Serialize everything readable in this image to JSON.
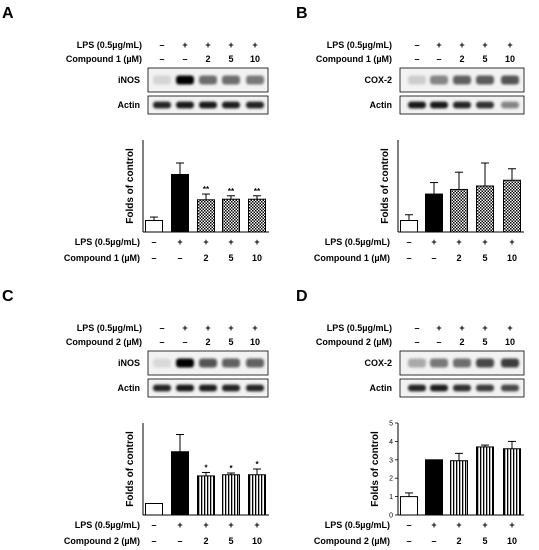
{
  "panels": [
    {
      "letter": "A",
      "treatments": [
        {
          "label": "LPS (0.5µg/mL)",
          "values": [
            "–",
            "+",
            "+",
            "+",
            "+"
          ]
        },
        {
          "label": "Compound 1 (µM)",
          "values": [
            "–",
            "–",
            "2",
            "5",
            "10"
          ]
        }
      ],
      "blots": [
        {
          "label": "iNOS",
          "intensity": [
            0.12,
            1.0,
            0.55,
            0.55,
            0.5
          ]
        },
        {
          "label": "Actin",
          "intensity": [
            0.85,
            0.9,
            0.9,
            0.88,
            0.86
          ]
        }
      ],
      "bottom_treatments": [
        {
          "label": "LPS (0.5µg/mL)",
          "values": [
            "–",
            "+",
            "+",
            "+",
            "+"
          ]
        },
        {
          "label": "Compound 1 (µM)",
          "values": [
            "–",
            "–",
            "2",
            "5",
            "10"
          ]
        }
      ]
    },
    {
      "letter": "B",
      "treatments": [
        {
          "label": "LPS (0.5µg/mL)",
          "values": [
            "–",
            "+",
            "+",
            "+",
            "+"
          ]
        },
        {
          "label": "Compound 1 (µM)",
          "values": [
            "–",
            "–",
            "2",
            "5",
            "10"
          ]
        }
      ],
      "blots": [
        {
          "label": "COX-2",
          "intensity": [
            0.15,
            0.45,
            0.6,
            0.62,
            0.65
          ]
        },
        {
          "label": "Actin",
          "intensity": [
            0.9,
            0.9,
            0.85,
            0.8,
            0.45
          ]
        }
      ],
      "bottom_treatments": [
        {
          "label": "LPS (0.5µg/mL)",
          "values": [
            "–",
            "+",
            "+",
            "+",
            "+"
          ]
        },
        {
          "label": "Compound 1 (µM)",
          "values": [
            "–",
            "–",
            "2",
            "5",
            "10"
          ]
        }
      ]
    },
    {
      "letter": "C",
      "treatments": [
        {
          "label": "LPS (0.5µg/mL)",
          "values": [
            "–",
            "+",
            "+",
            "+",
            "+"
          ]
        },
        {
          "label": "Compound 2 (µM)",
          "values": [
            "–",
            "–",
            "2",
            "5",
            "10"
          ]
        }
      ],
      "blots": [
        {
          "label": "iNOS",
          "intensity": [
            0.1,
            1.0,
            0.65,
            0.6,
            0.6
          ]
        },
        {
          "label": "Actin",
          "intensity": [
            0.85,
            0.9,
            0.88,
            0.86,
            0.85
          ]
        }
      ],
      "bottom_treatments": [
        {
          "label": "LPS (0.5µg/mL)",
          "values": [
            "–",
            "+",
            "+",
            "+",
            "+"
          ]
        },
        {
          "label": "Compound 2 (µM)",
          "values": [
            "–",
            "–",
            "2",
            "5",
            "10"
          ]
        }
      ]
    },
    {
      "letter": "D",
      "treatments": [
        {
          "label": "LPS (0.5µg/mL)",
          "values": [
            "–",
            "+",
            "+",
            "+",
            "+"
          ]
        },
        {
          "label": "Compound 2 (µM)",
          "values": [
            "–",
            "–",
            "2",
            "5",
            "10"
          ]
        }
      ],
      "blots": [
        {
          "label": "COX-2",
          "intensity": [
            0.3,
            0.5,
            0.55,
            0.7,
            0.75
          ]
        },
        {
          "label": "Actin",
          "intensity": [
            0.85,
            0.88,
            0.8,
            0.75,
            0.7
          ]
        }
      ],
      "bottom_treatments": [
        {
          "label": "LPS (0.5µg/mL)",
          "values": [
            "–",
            "+",
            "+",
            "+",
            "+"
          ]
        },
        {
          "label": "Compound 2 (µM)",
          "values": [
            "–",
            "–",
            "2",
            "5",
            "10"
          ]
        }
      ]
    }
  ],
  "chart_data": [
    {
      "type": "bar",
      "panel": "A",
      "ylabel": "Folds of control",
      "categories": [
        "1",
        "2",
        "3",
        "4",
        "5"
      ],
      "values": [
        1.0,
        5.0,
        2.8,
        2.85,
        2.85
      ],
      "errors": [
        0.3,
        1.0,
        0.5,
        0.3,
        0.3
      ],
      "significance": [
        "",
        "",
        "**",
        "**",
        "**"
      ],
      "fills": [
        "white",
        "black",
        "checker",
        "checker",
        "checker"
      ],
      "ylim": [
        0,
        8
      ],
      "ticks_shown": false
    },
    {
      "type": "bar",
      "panel": "B",
      "ylabel": "Folds of control",
      "categories": [
        "1",
        "2",
        "3",
        "4",
        "5"
      ],
      "values": [
        1.0,
        3.3,
        3.7,
        4.0,
        4.5
      ],
      "errors": [
        0.5,
        1.0,
        1.5,
        2.0,
        1.0
      ],
      "significance": [
        "",
        "",
        "",
        "",
        ""
      ],
      "fills": [
        "white",
        "black",
        "checker",
        "checker",
        "checker"
      ],
      "ylim": [
        0,
        8
      ],
      "ticks_shown": false
    },
    {
      "type": "bar",
      "panel": "C",
      "ylabel": "Folds of control",
      "categories": [
        "1",
        "2",
        "3",
        "4",
        "5"
      ],
      "values": [
        1.0,
        5.5,
        3.4,
        3.5,
        3.5
      ],
      "errors": [
        0.0,
        1.5,
        0.3,
        0.15,
        0.5
      ],
      "significance": [
        "",
        "",
        "*",
        "*",
        "*"
      ],
      "fills": [
        "white",
        "black",
        "stripes",
        "stripes",
        "stripes"
      ],
      "ylim": [
        0,
        8
      ],
      "ticks_shown": false
    },
    {
      "type": "bar",
      "panel": "D",
      "ylabel": "Folds of control",
      "categories": [
        "1",
        "2",
        "3",
        "4",
        "5"
      ],
      "values": [
        1.0,
        3.0,
        2.95,
        3.7,
        3.6
      ],
      "errors": [
        0.2,
        0.0,
        0.4,
        0.1,
        0.4
      ],
      "significance": [
        "",
        "",
        "",
        "",
        ""
      ],
      "fills": [
        "white",
        "black",
        "stripes",
        "stripes",
        "stripes"
      ],
      "ylim": [
        0,
        5
      ],
      "yticks": [
        "0",
        "1",
        "2",
        "3",
        "4",
        "5"
      ],
      "ticks_shown": true
    }
  ]
}
